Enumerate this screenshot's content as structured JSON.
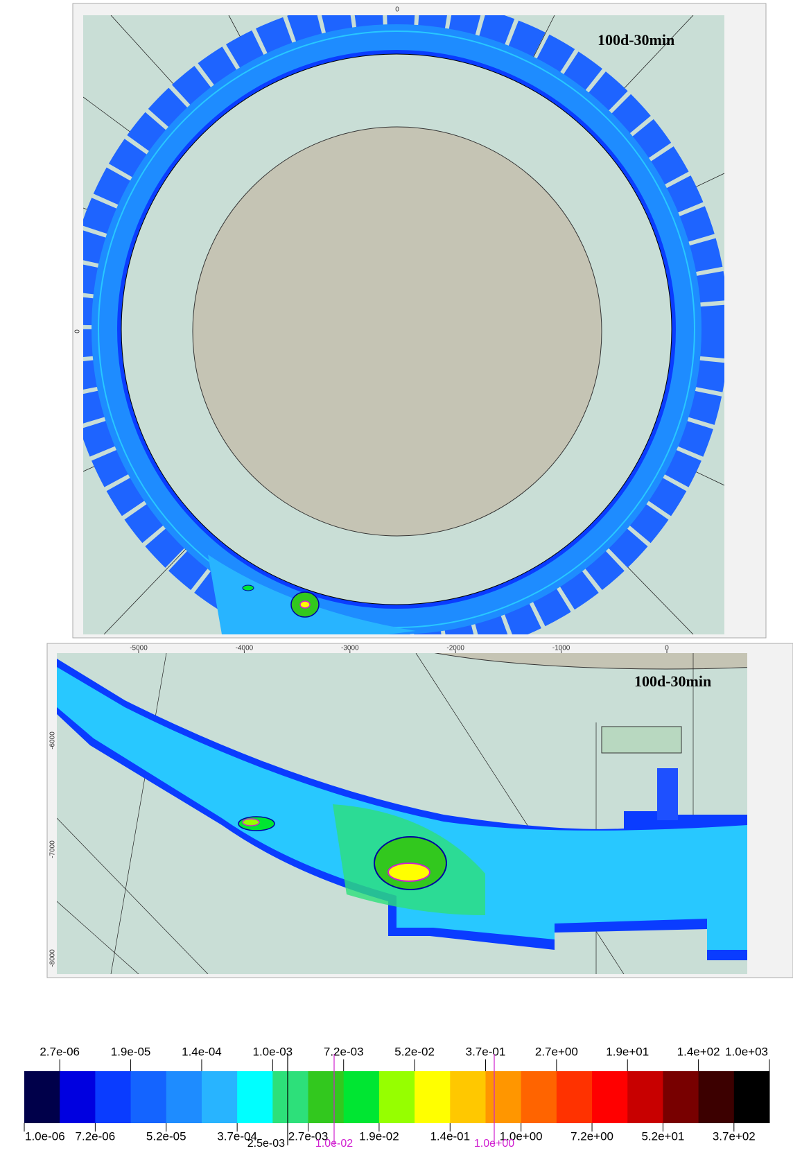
{
  "panels": [
    {
      "label": "100d-30min",
      "x_ticks": [
        "0"
      ],
      "y_ticks": [
        "0"
      ]
    },
    {
      "label": "100d-30min",
      "x_ticks": [
        "-5000",
        "-4000",
        "-3000",
        "-2000",
        "-1000",
        "0"
      ],
      "y_ticks": [
        "-6000",
        "-7000",
        "-8000"
      ]
    }
  ],
  "colorbar": {
    "colors": [
      "#00004a",
      "#0000e0",
      "#0a3cff",
      "#1464ff",
      "#1e8cff",
      "#28b4ff",
      "#00ffff",
      "#2de07a",
      "#32c81e",
      "#00e632",
      "#96ff00",
      "#ffff00",
      "#ffc800",
      "#ff9600",
      "#ff6400",
      "#ff3200",
      "#ff0000",
      "#c80000",
      "#780000",
      "#3c0000",
      "#000000"
    ],
    "upper_labels": [
      "2.7e-06",
      "1.9e-05",
      "1.4e-04",
      "1.0e-03",
      "7.2e-03",
      "5.2e-02",
      "3.7e-01",
      "2.7e+00",
      "1.9e+01",
      "1.4e+02",
      "1.0e+03"
    ],
    "lower_labels": [
      "1.0e-06",
      "7.2e-06",
      "5.2e-05",
      "3.7e-04",
      "2.7e-03",
      "1.9e-02",
      "1.4e-01",
      "1.0e+00",
      "7.2e+00",
      "5.2e+01",
      "3.7e+02"
    ],
    "contours": [
      {
        "label": "2.5e-03",
        "color": "#000000"
      },
      {
        "label": "1.0e-02",
        "color": "#d020d0"
      },
      {
        "label": "1.0e+00",
        "color": "#d020d0"
      }
    ]
  }
}
